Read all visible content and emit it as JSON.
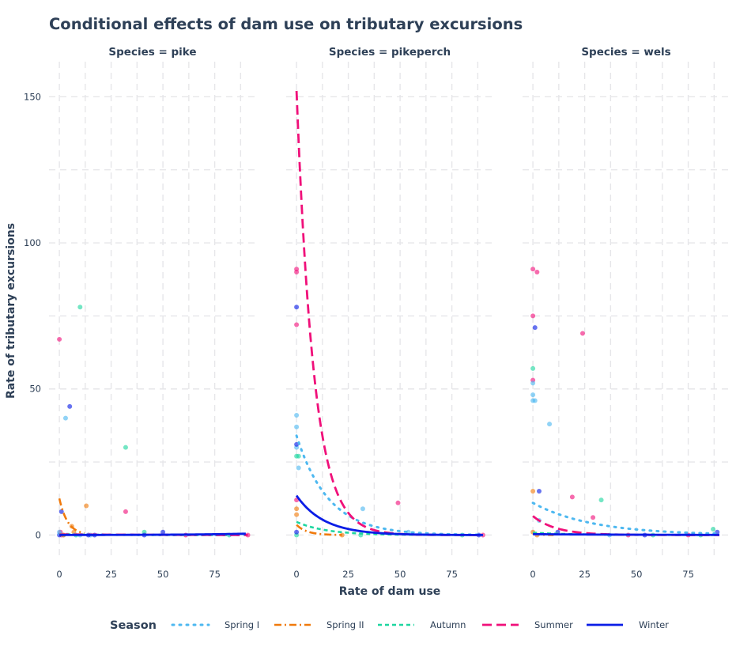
{
  "chart_data": {
    "type": "scatter",
    "title": "Conditional effects of dam use on tributary excursions",
    "xlabel": "Rate of dam use",
    "ylabel": "Rate of tributary excursions",
    "xlim": [
      -5,
      95
    ],
    "ylim": [
      -8,
      162
    ],
    "x_ticks": [
      0,
      25,
      50,
      75
    ],
    "y_ticks": [
      0,
      50,
      100,
      150
    ],
    "grid": true,
    "legend_position": "bottom",
    "legend_title": "Season",
    "seasons": [
      {
        "name": "Spring I",
        "color": "#4db8f0",
        "dash": "2 7",
        "width": 3,
        "linecap": "round"
      },
      {
        "name": "Spring II",
        "color": "#f07a0c",
        "dash": "9 4 2 4",
        "width": 2.6,
        "linecap": "butt"
      },
      {
        "name": "Autumn",
        "color": "#1ed6a0",
        "dash": "5 4",
        "width": 2.6,
        "linecap": "butt"
      },
      {
        "name": "Summer",
        "color": "#f0107a",
        "dash": "12 6",
        "width": 2.8,
        "linecap": "butt"
      },
      {
        "name": "Winter",
        "color": "#0a1de6",
        "dash": "",
        "width": 2.8,
        "linecap": "butt"
      }
    ],
    "panels": [
      {
        "label": "Species = pike",
        "curves": {
          "Spring I": {
            "a": 0.4,
            "k": 0.05,
            "x_end": 90
          },
          "Spring II": {
            "a": 12.5,
            "k": 0.25,
            "x_end": 12
          },
          "Autumn": {
            "a": 0.3,
            "k": 0.05,
            "x_end": 82
          },
          "Summer": {
            "a": 0.2,
            "k": 0.02,
            "x_end": 91
          },
          "Winter": {
            "a": 0.02,
            "k": -0.035,
            "x_end": 90
          }
        },
        "points": [
          {
            "s": "Summer",
            "x": 0,
            "y": 67
          },
          {
            "s": "Summer",
            "x": 0.5,
            "y": 1
          },
          {
            "s": "Summer",
            "x": 1,
            "y": 0
          },
          {
            "s": "Summer",
            "x": 32,
            "y": 8
          },
          {
            "s": "Summer",
            "x": 61,
            "y": 0
          },
          {
            "s": "Summer",
            "x": 91,
            "y": 0
          },
          {
            "s": "Spring I",
            "x": 3,
            "y": 40
          },
          {
            "s": "Spring I",
            "x": 0,
            "y": 1
          },
          {
            "s": "Spring I",
            "x": 2,
            "y": 0
          },
          {
            "s": "Spring I",
            "x": 10,
            "y": 0
          },
          {
            "s": "Spring I",
            "x": 15,
            "y": 0
          },
          {
            "s": "Spring II",
            "x": 6,
            "y": 3
          },
          {
            "s": "Spring II",
            "x": 13,
            "y": 10
          },
          {
            "s": "Spring II",
            "x": 7,
            "y": 1
          },
          {
            "s": "Spring II",
            "x": 2,
            "y": 0
          },
          {
            "s": "Autumn",
            "x": 10,
            "y": 78
          },
          {
            "s": "Autumn",
            "x": 32,
            "y": 30
          },
          {
            "s": "Autumn",
            "x": 41,
            "y": 1
          },
          {
            "s": "Autumn",
            "x": 82,
            "y": 0
          },
          {
            "s": "Autumn",
            "x": 8,
            "y": 0
          },
          {
            "s": "Winter",
            "x": 5,
            "y": 44
          },
          {
            "s": "Winter",
            "x": 1,
            "y": 8
          },
          {
            "s": "Winter",
            "x": 0,
            "y": 0
          },
          {
            "s": "Winter",
            "x": 14,
            "y": 0
          },
          {
            "s": "Winter",
            "x": 17,
            "y": 0
          },
          {
            "s": "Winter",
            "x": 41,
            "y": 0
          },
          {
            "s": "Winter",
            "x": 50,
            "y": 1
          }
        ]
      },
      {
        "label": "Species = pikeperch",
        "curves": {
          "Spring I": {
            "a": 34,
            "k": 0.065,
            "x_end": 90
          },
          "Spring II": {
            "a": 3.5,
            "k": 0.2,
            "x_end": 22
          },
          "Autumn": {
            "a": 4.5,
            "k": 0.07,
            "x_end": 90
          },
          "Summer": {
            "a": 152,
            "k": 0.12,
            "x_end": 90
          },
          "Winter": {
            "a": 13.5,
            "k": 0.075,
            "x_end": 90
          }
        },
        "points": [
          {
            "s": "Summer",
            "x": 0,
            "y": 91
          },
          {
            "s": "Summer",
            "x": 0,
            "y": 90
          },
          {
            "s": "Summer",
            "x": 0,
            "y": 72
          },
          {
            "s": "Summer",
            "x": 0,
            "y": 12
          },
          {
            "s": "Summer",
            "x": 49,
            "y": 11
          },
          {
            "s": "Summer",
            "x": 90,
            "y": 0
          },
          {
            "s": "Spring I",
            "x": 0,
            "y": 41
          },
          {
            "s": "Spring I",
            "x": 0,
            "y": 37
          },
          {
            "s": "Spring I",
            "x": 0,
            "y": 30
          },
          {
            "s": "Spring I",
            "x": 1,
            "y": 23
          },
          {
            "s": "Spring I",
            "x": 32,
            "y": 9
          },
          {
            "s": "Spring I",
            "x": 54,
            "y": 1
          },
          {
            "s": "Spring II",
            "x": 0,
            "y": 9
          },
          {
            "s": "Spring II",
            "x": 0,
            "y": 7
          },
          {
            "s": "Spring II",
            "x": 22,
            "y": 0
          },
          {
            "s": "Autumn",
            "x": 0,
            "y": 27
          },
          {
            "s": "Autumn",
            "x": 1,
            "y": 27
          },
          {
            "s": "Autumn",
            "x": 31,
            "y": 0
          },
          {
            "s": "Autumn",
            "x": 80,
            "y": 0
          },
          {
            "s": "Autumn",
            "x": 0,
            "y": 0
          },
          {
            "s": "Winter",
            "x": 0,
            "y": 78
          },
          {
            "s": "Winter",
            "x": 0,
            "y": 31
          },
          {
            "s": "Winter",
            "x": 0,
            "y": 1
          },
          {
            "s": "Winter",
            "x": 88,
            "y": 0
          }
        ]
      },
      {
        "label": "Species = wels",
        "curves": {
          "Spring I": {
            "a": 11,
            "k": 0.035,
            "x_end": 90
          },
          "Spring II": {
            "a": 0.5,
            "k": 0.3,
            "x_end": 10
          },
          "Autumn": {
            "a": 0.8,
            "k": 0.05,
            "x_end": 90
          },
          "Summer": {
            "a": 6.5,
            "k": 0.09,
            "x_end": 90
          },
          "Winter": {
            "a": 0.3,
            "k": 0.02,
            "x_end": 90
          }
        },
        "points": [
          {
            "s": "Summer",
            "x": 0,
            "y": 91
          },
          {
            "s": "Summer",
            "x": 2,
            "y": 90
          },
          {
            "s": "Summer",
            "x": 0,
            "y": 75
          },
          {
            "s": "Summer",
            "x": 0,
            "y": 53
          },
          {
            "s": "Summer",
            "x": 24,
            "y": 69
          },
          {
            "s": "Summer",
            "x": 19,
            "y": 13
          },
          {
            "s": "Summer",
            "x": 29,
            "y": 6
          },
          {
            "s": "Summer",
            "x": 46,
            "y": 0
          },
          {
            "s": "Summer",
            "x": 75,
            "y": 0
          },
          {
            "s": "Spring I",
            "x": 0,
            "y": 52
          },
          {
            "s": "Spring I",
            "x": 0,
            "y": 48
          },
          {
            "s": "Spring I",
            "x": 0,
            "y": 46
          },
          {
            "s": "Spring I",
            "x": 1,
            "y": 46
          },
          {
            "s": "Spring I",
            "x": 8,
            "y": 38
          },
          {
            "s": "Spring I",
            "x": 3,
            "y": 5
          },
          {
            "s": "Spring I",
            "x": 37,
            "y": 0
          },
          {
            "s": "Spring II",
            "x": 0,
            "y": 15
          },
          {
            "s": "Spring II",
            "x": 0,
            "y": 1
          },
          {
            "s": "Spring II",
            "x": 2,
            "y": 0
          },
          {
            "s": "Autumn",
            "x": 0,
            "y": 57
          },
          {
            "s": "Autumn",
            "x": 33,
            "y": 12
          },
          {
            "s": "Autumn",
            "x": 87,
            "y": 2
          },
          {
            "s": "Autumn",
            "x": 81,
            "y": 0
          },
          {
            "s": "Autumn",
            "x": 58,
            "y": 0
          },
          {
            "s": "Winter",
            "x": 1,
            "y": 71
          },
          {
            "s": "Winter",
            "x": 3,
            "y": 15
          },
          {
            "s": "Winter",
            "x": 12,
            "y": 1
          },
          {
            "s": "Winter",
            "x": 54,
            "y": 0
          },
          {
            "s": "Winter",
            "x": 89,
            "y": 1
          }
        ]
      }
    ]
  }
}
